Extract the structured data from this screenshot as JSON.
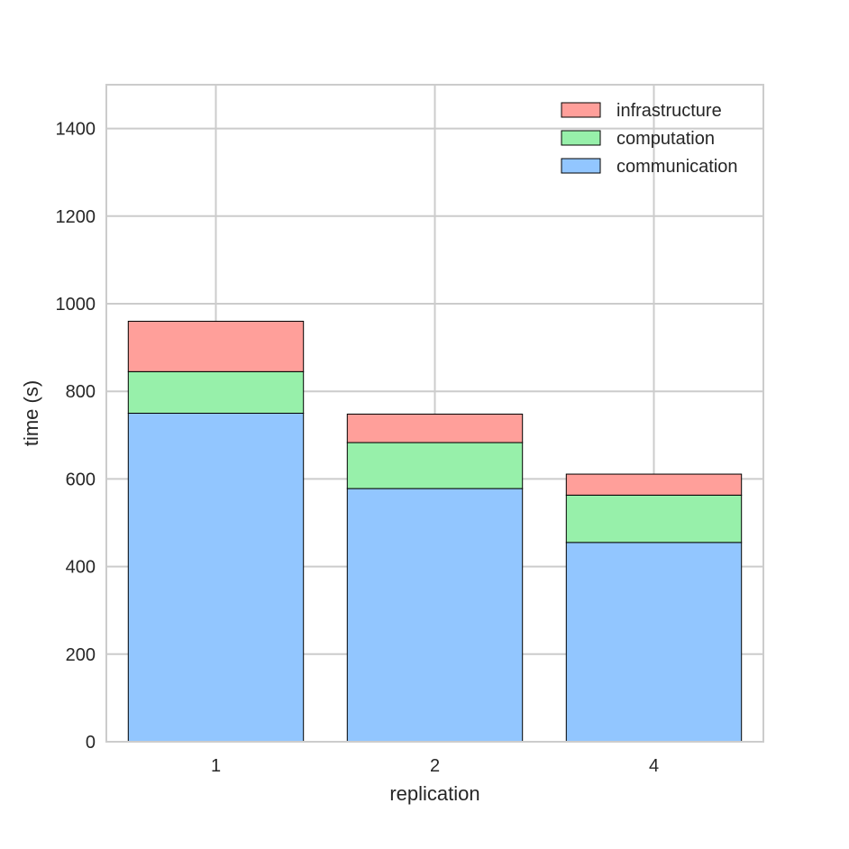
{
  "chart_data": {
    "type": "bar",
    "stacked": true,
    "categories": [
      "1",
      "2",
      "4"
    ],
    "series": [
      {
        "name": "communication",
        "values": [
          750,
          578,
          455
        ],
        "color": "#92c6ff"
      },
      {
        "name": "computation",
        "values": [
          95,
          105,
          108
        ],
        "color": "#97f0aa"
      },
      {
        "name": "infrastructure",
        "values": [
          115,
          65,
          48
        ],
        "color": "#ff9f9a"
      }
    ],
    "xlabel": "replication",
    "ylabel": "time (s)",
    "ylim": [
      0,
      1500
    ],
    "yticks": [
      0,
      200,
      400,
      600,
      800,
      1000,
      1200,
      1400
    ],
    "grid": true,
    "legend": {
      "placement": "top-right",
      "order": [
        "infrastructure",
        "computation",
        "communication"
      ]
    }
  }
}
